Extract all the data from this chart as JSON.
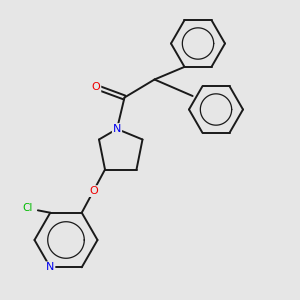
{
  "bg_color": "#e6e6e6",
  "bond_color": "#1a1a1a",
  "bond_width": 1.4,
  "atom_colors": {
    "N": "#0000ee",
    "O": "#ee0000",
    "Cl": "#00bb00",
    "C": "#1a1a1a"
  },
  "font_size_atom": 8.0,
  "font_size_cl": 7.5
}
